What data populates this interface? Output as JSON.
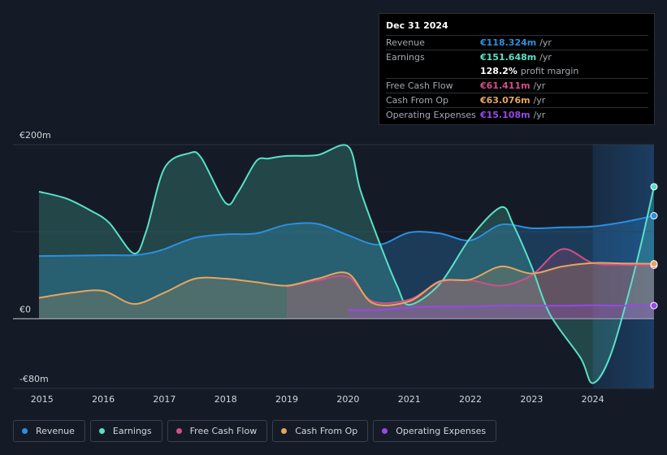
{
  "tooltip": {
    "date": "Dec 31 2024",
    "rows": [
      {
        "label": "Revenue",
        "value": "€118.324m",
        "unit": "/yr",
        "color": "#2c8fe0"
      },
      {
        "label": "Earnings",
        "value": "€151.648m",
        "unit": "/yr",
        "color": "#58e1c8"
      },
      {
        "label": "",
        "value": "128.2%",
        "unit": "profit margin",
        "color": "#ffffff"
      },
      {
        "label": "Free Cash Flow",
        "value": "€61.411m",
        "unit": "/yr",
        "color": "#cf4f89"
      },
      {
        "label": "Cash From Op",
        "value": "€63.076m",
        "unit": "/yr",
        "color": "#e5a660"
      },
      {
        "label": "Operating Expenses",
        "value": "€15.108m",
        "unit": "/yr",
        "color": "#9848e8"
      }
    ]
  },
  "legend": [
    {
      "label": "Revenue",
      "color": "#2c8fe0"
    },
    {
      "label": "Earnings",
      "color": "#58e1c8"
    },
    {
      "label": "Free Cash Flow",
      "color": "#cf4f89"
    },
    {
      "label": "Cash From Op",
      "color": "#e5a660"
    },
    {
      "label": "Operating Expenses",
      "color": "#9848e8"
    }
  ],
  "chart_data": {
    "type": "area",
    "title": "",
    "currency": "EUR",
    "ylim": [
      -80,
      200
    ],
    "y_tick_labels": [
      "€200m",
      "€0",
      "-€80m"
    ],
    "y_tick_values": [
      200,
      0,
      -80
    ],
    "x_tick_labels": [
      "2015",
      "2016",
      "2017",
      "2018",
      "2019",
      "2020",
      "2021",
      "2022",
      "2023",
      "2024"
    ],
    "x_tick_values": [
      2015,
      2016,
      2017,
      2018,
      2019,
      2020,
      2021,
      2022,
      2023,
      2024
    ],
    "xlim": [
      2014.95,
      2025.0
    ],
    "highlight_from": 2024.0,
    "series": [
      {
        "name": "Revenue",
        "color": "#2c8fe0",
        "points": [
          [
            2014.95,
            72
          ],
          [
            2015.5,
            72.5
          ],
          [
            2016.0,
            73
          ],
          [
            2016.5,
            73
          ],
          [
            2016.8,
            76
          ],
          [
            2017.0,
            80
          ],
          [
            2017.5,
            93
          ],
          [
            2018.0,
            97
          ],
          [
            2018.5,
            98
          ],
          [
            2019.0,
            108
          ],
          [
            2019.5,
            109
          ],
          [
            2020.0,
            96
          ],
          [
            2020.5,
            85
          ],
          [
            2021.0,
            99
          ],
          [
            2021.5,
            98
          ],
          [
            2022.0,
            90
          ],
          [
            2022.5,
            108
          ],
          [
            2023.0,
            104
          ],
          [
            2023.5,
            105
          ],
          [
            2024.0,
            106
          ],
          [
            2024.5,
            111
          ],
          [
            2025.0,
            118.3
          ]
        ]
      },
      {
        "name": "Earnings",
        "color": "#58e1c8",
        "points": [
          [
            2014.95,
            146
          ],
          [
            2015.4,
            138
          ],
          [
            2015.8,
            124
          ],
          [
            2016.1,
            110
          ],
          [
            2016.5,
            75
          ],
          [
            2016.7,
            100
          ],
          [
            2017.0,
            173
          ],
          [
            2017.4,
            190
          ],
          [
            2017.6,
            185
          ],
          [
            2018.0,
            133
          ],
          [
            2018.2,
            145
          ],
          [
            2018.5,
            181
          ],
          [
            2018.7,
            184
          ],
          [
            2019.0,
            187
          ],
          [
            2019.5,
            188
          ],
          [
            2020.0,
            198
          ],
          [
            2020.2,
            148
          ],
          [
            2020.5,
            90
          ],
          [
            2020.8,
            38
          ],
          [
            2021.0,
            16
          ],
          [
            2021.5,
            40
          ],
          [
            2022.0,
            93
          ],
          [
            2022.5,
            128
          ],
          [
            2022.7,
            108
          ],
          [
            2023.0,
            60
          ],
          [
            2023.3,
            5
          ],
          [
            2023.8,
            -45
          ],
          [
            2024.0,
            -74
          ],
          [
            2024.3,
            -40
          ],
          [
            2024.7,
            60
          ],
          [
            2025.0,
            151.6
          ]
        ]
      },
      {
        "name": "Free Cash Flow",
        "color": "#cf4f89",
        "points": [
          [
            2019.0,
            37
          ],
          [
            2019.5,
            44
          ],
          [
            2020.0,
            48
          ],
          [
            2020.4,
            20
          ],
          [
            2021.0,
            22
          ],
          [
            2021.5,
            42
          ],
          [
            2022.0,
            44
          ],
          [
            2022.5,
            38
          ],
          [
            2023.0,
            50
          ],
          [
            2023.5,
            80
          ],
          [
            2024.0,
            64
          ],
          [
            2024.5,
            62
          ],
          [
            2025.0,
            61.4
          ]
        ]
      },
      {
        "name": "Cash From Op",
        "color": "#e5a660",
        "points": [
          [
            2014.95,
            24
          ],
          [
            2015.5,
            30
          ],
          [
            2016.0,
            32
          ],
          [
            2016.5,
            17
          ],
          [
            2017.0,
            30
          ],
          [
            2017.5,
            46
          ],
          [
            2018.0,
            46
          ],
          [
            2018.5,
            42
          ],
          [
            2019.0,
            38
          ],
          [
            2019.5,
            46
          ],
          [
            2020.0,
            52
          ],
          [
            2020.4,
            18
          ],
          [
            2021.0,
            20
          ],
          [
            2021.5,
            43
          ],
          [
            2022.0,
            45
          ],
          [
            2022.5,
            60
          ],
          [
            2023.0,
            52
          ],
          [
            2023.5,
            60
          ],
          [
            2024.0,
            64
          ],
          [
            2024.5,
            63.5
          ],
          [
            2025.0,
            63.1
          ]
        ]
      },
      {
        "name": "Operating Expenses",
        "color": "#9848e8",
        "points": [
          [
            2020.0,
            10
          ],
          [
            2020.5,
            10
          ],
          [
            2021.0,
            13
          ],
          [
            2021.5,
            14
          ],
          [
            2022.0,
            14
          ],
          [
            2022.5,
            15
          ],
          [
            2023.0,
            15
          ],
          [
            2023.5,
            15
          ],
          [
            2024.0,
            15.5
          ],
          [
            2024.5,
            15
          ],
          [
            2025.0,
            15.1
          ]
        ]
      }
    ]
  }
}
